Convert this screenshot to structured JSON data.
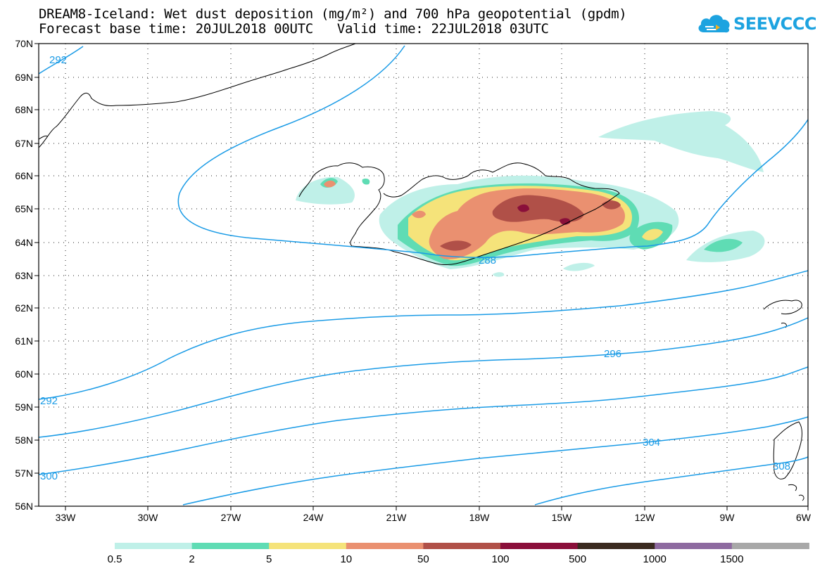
{
  "title": {
    "line1": "DREAM8-Iceland: Wet dust deposition (mg/m²) and 700 hPa geopotential (gpdm)",
    "forecast_base": "Forecast base time: 20JUL2018 00UTC",
    "valid_time": "Valid time: 22JUL2018 03UTC"
  },
  "logo": {
    "text": "SEEVCCC",
    "icon": "cloud-logo-icon",
    "color": "#1da3e0"
  },
  "map": {
    "lat_labels": [
      "70N",
      "69N",
      "68N",
      "67N",
      "66N",
      "65N",
      "64N",
      "63N",
      "62N",
      "61N",
      "60N",
      "59N",
      "58N",
      "57N",
      "56N"
    ],
    "lon_labels": [
      "33W",
      "30W",
      "27W",
      "24W",
      "21W",
      "18W",
      "15W",
      "12W",
      "9W",
      "6W"
    ],
    "contour_color": "#1a9be6",
    "contour_labels": [
      "292",
      "288",
      "296",
      "292",
      "304",
      "300",
      "308"
    ]
  },
  "legend": {
    "labels": [
      "0.5",
      "2",
      "5",
      "10",
      "50",
      "100",
      "500",
      "1000",
      "1500"
    ],
    "colors": [
      "#bff0e8",
      "#5fdcb4",
      "#f5e37a",
      "#ea9070",
      "#b05048",
      "#8a0f3a",
      "#3a2a20",
      "#8e6aa0",
      "#a8a8a8"
    ]
  }
}
